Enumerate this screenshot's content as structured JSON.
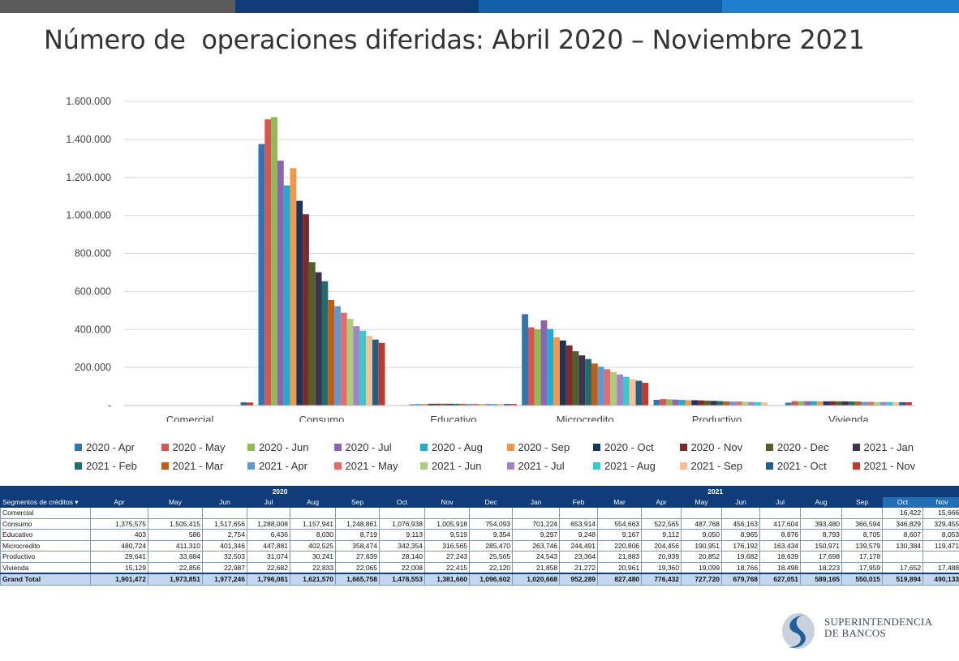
{
  "title": "Número de  operaciones diferidas: Abril 2020 – Noviembre 2021",
  "colors": {
    "topbar": [
      "#5b5b5b",
      "#0f3d7a",
      "#1460a8",
      "#1f7fcf"
    ],
    "series": [
      "#2e75b6",
      "#d9534f",
      "#8fbc52",
      "#8e63b3",
      "#1eaed0",
      "#f79646",
      "#17375e",
      "#7f2a2a",
      "#4f6228",
      "#403151",
      "#1e6e6e",
      "#c55a11",
      "#5b9bd5",
      "#e46c6c",
      "#a9cf7c",
      "#a582c7",
      "#33cccc",
      "#fac08f",
      "#1f5f8b",
      "#c0392b"
    ]
  },
  "chart_data": {
    "type": "bar",
    "categories": [
      "Comercial",
      "Consumo",
      "Educativo",
      "Microcredito",
      "Productivo",
      "Vivienda"
    ],
    "ylim": [
      0,
      1600000
    ],
    "yticks": [
      "-",
      "200.000",
      "400.000",
      "600.000",
      "800.000",
      "1.000.000",
      "1.200.000",
      "1.400.000",
      "1.600.000"
    ],
    "grid": true,
    "legend_position": "bottom",
    "series": [
      {
        "name": "2020 - Apr",
        "values": [
          0,
          1375575,
          403,
          480724,
          29641,
          15129
        ]
      },
      {
        "name": "2020 - May",
        "values": [
          0,
          1505415,
          586,
          411310,
          33684,
          22856
        ]
      },
      {
        "name": "2020 - Jun",
        "values": [
          0,
          1517656,
          2754,
          401346,
          32503,
          22987
        ]
      },
      {
        "name": "2020 - Jul",
        "values": [
          0,
          1288008,
          6436,
          447881,
          31074,
          22682
        ]
      },
      {
        "name": "2020 - Aug",
        "values": [
          0,
          1157941,
          8030,
          402525,
          30241,
          22833
        ]
      },
      {
        "name": "2020 - Sep",
        "values": [
          0,
          1248861,
          8719,
          358474,
          27639,
          22065
        ]
      },
      {
        "name": "2020 - Oct",
        "values": [
          0,
          1076938,
          9113,
          342354,
          28140,
          22008
        ]
      },
      {
        "name": "2020 - Nov",
        "values": [
          0,
          1005918,
          9519,
          316565,
          27243,
          22415
        ]
      },
      {
        "name": "2020 - Dec",
        "values": [
          0,
          754093,
          9354,
          285470,
          25565,
          22120
        ]
      },
      {
        "name": "2021 - Jan",
        "values": [
          0,
          701224,
          9297,
          263746,
          24543,
          21858
        ]
      },
      {
        "name": "2021 - Feb",
        "values": [
          0,
          653914,
          9248,
          244491,
          23364,
          21272
        ]
      },
      {
        "name": "2021 - Mar",
        "values": [
          0,
          554663,
          9167,
          220806,
          21883,
          20961
        ]
      },
      {
        "name": "2021 - Apr",
        "values": [
          0,
          522565,
          9112,
          204456,
          20939,
          19360
        ]
      },
      {
        "name": "2021 - May",
        "values": [
          0,
          487768,
          9050,
          190951,
          20852,
          19099
        ]
      },
      {
        "name": "2021 - Jun",
        "values": [
          0,
          456163,
          8965,
          176192,
          19682,
          18766
        ]
      },
      {
        "name": "2021 - Jul",
        "values": [
          0,
          417604,
          8876,
          163434,
          18639,
          18498
        ]
      },
      {
        "name": "2021 - Aug",
        "values": [
          0,
          393480,
          8793,
          150971,
          17698,
          18223
        ]
      },
      {
        "name": "2021 - Sep",
        "values": [
          0,
          366594,
          8705,
          139579,
          17178,
          17959
        ]
      },
      {
        "name": "2021 - Oct",
        "values": [
          16422,
          346829,
          8607,
          130384,
          0,
          17652
        ]
      },
      {
        "name": "2021 - Nov",
        "values": [
          15666,
          329455,
          8053,
          119471,
          0,
          17488
        ]
      }
    ]
  },
  "table": {
    "corner": "Segmentos de créditos",
    "years": [
      "2020",
      "2021"
    ],
    "months": [
      "Apr",
      "May",
      "Jun",
      "Jul",
      "Aug",
      "Sep",
      "Oct",
      "Nov",
      "Dec",
      "Jan",
      "Feb",
      "Mar",
      "Apr",
      "May",
      "Jun",
      "Jul",
      "Aug",
      "Sep",
      "Oct",
      "Nov"
    ],
    "rows": [
      {
        "label": "Comercial",
        "cells": [
          "",
          "",
          "",
          "",
          "",
          "",
          "",
          "",
          "",
          "",
          "",
          "",
          "",
          "",
          "",
          "",
          "",
          "",
          "16,422",
          "15,666"
        ]
      },
      {
        "label": "Consumo",
        "cells": [
          "1,375,575",
          "1,505,415",
          "1,517,656",
          "1,288,008",
          "1,157,941",
          "1,248,861",
          "1,076,938",
          "1,005,918",
          "754,093",
          "701,224",
          "653,914",
          "554,663",
          "522,565",
          "487,768",
          "456,163",
          "417,604",
          "393,480",
          "366,594",
          "346,829",
          "329,455"
        ]
      },
      {
        "label": "Educativo",
        "cells": [
          "403",
          "586",
          "2,754",
          "6,436",
          "8,030",
          "8,719",
          "9,113",
          "9,519",
          "9,354",
          "9,297",
          "9,248",
          "9,167",
          "9,112",
          "9,050",
          "8,965",
          "8,876",
          "8,793",
          "8,705",
          "8,607",
          "8,053"
        ]
      },
      {
        "label": "Microcredito",
        "cells": [
          "480,724",
          "411,310",
          "401,346",
          "447,881",
          "402,525",
          "358,474",
          "342,354",
          "316,565",
          "285,470",
          "263,746",
          "244,491",
          "220,806",
          "204,456",
          "190,951",
          "176,192",
          "163,434",
          "150,971",
          "139,579",
          "130,384",
          "119,471"
        ]
      },
      {
        "label": "Productivo",
        "cells": [
          "29,641",
          "33,684",
          "32,503",
          "31,074",
          "30,241",
          "27,639",
          "28,140",
          "27,243",
          "25,565",
          "24,543",
          "23,364",
          "21,883",
          "20,939",
          "20,852",
          "19,682",
          "18,639",
          "17,698",
          "17,178",
          "",
          ""
        ]
      },
      {
        "label": "Vivienda",
        "cells": [
          "15,129",
          "22,856",
          "22,987",
          "22,682",
          "22,833",
          "22,065",
          "22,008",
          "22,415",
          "22,120",
          "21,858",
          "21,272",
          "20,961",
          "19,360",
          "19,099",
          "18,766",
          "18,498",
          "18,223",
          "17,959",
          "17,652",
          "17,488"
        ]
      }
    ],
    "total": {
      "label": "Grand Total",
      "cells": [
        "1,901,472",
        "1,973,851",
        "1,977,246",
        "1,796,081",
        "1,621,570",
        "1,665,758",
        "1,478,553",
        "1,381,660",
        "1,096,602",
        "1,020,668",
        "952,289",
        "827,480",
        "776,432",
        "727,720",
        "679,768",
        "627,051",
        "589,165",
        "550,015",
        "519,894",
        "490,133"
      ]
    }
  },
  "logo": {
    "line1": "SUPERINTENDENCIA",
    "line2": "DE BANCOS"
  }
}
